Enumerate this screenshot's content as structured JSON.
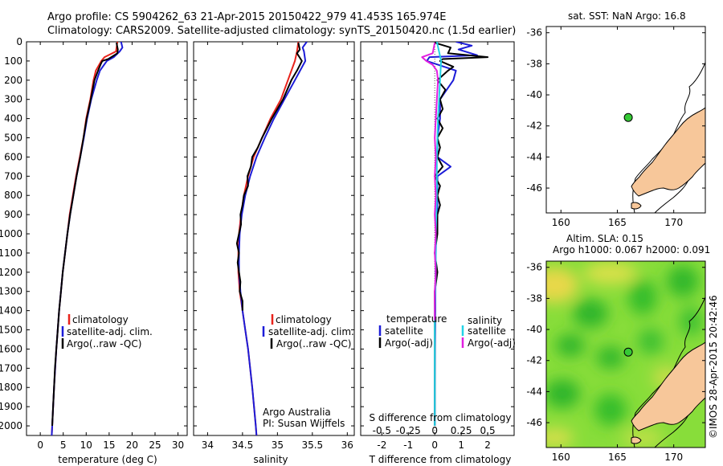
{
  "header": {
    "title_line1": "Argo profile: CS 5904262_63 21-Apr-2015 20150422_979 41.453S 165.974E",
    "title_line2": "Climatology: CARS2009. Satellite-adjusted climatology: synTS_20150420.nc (1.5d earlier)"
  },
  "colors": {
    "climatology": "#e8231b",
    "satellite": "#1c1cd8",
    "argo": "#000000",
    "sal_satellite": "#22d3e6",
    "sal_argo": "#e21fe0",
    "land": "#f7c79a",
    "marker": "#35c935"
  },
  "chart_data": [
    {
      "type": "line",
      "id": "temperature",
      "xlabel": "temperature (deg C)",
      "ylabel": "",
      "xlim": [
        -3,
        32
      ],
      "ylim": [
        2050,
        0
      ],
      "xticks": [
        0,
        5,
        10,
        15,
        20,
        25,
        30
      ],
      "yticks": [
        0,
        100,
        200,
        300,
        400,
        500,
        600,
        700,
        800,
        900,
        1000,
        1100,
        1200,
        1300,
        1400,
        1500,
        1600,
        1700,
        1800,
        1900,
        2000
      ],
      "legend": [
        "climatology",
        "satellite-adj. clim.",
        "Argo(..raw -QC)"
      ],
      "series": [
        {
          "name": "climatology",
          "depth": [
            0,
            50,
            80,
            100,
            150,
            200,
            300,
            400,
            500,
            600,
            700,
            800,
            900,
            1000,
            1200,
            1400,
            1600,
            1800,
            2000,
            2050
          ],
          "values": [
            16.8,
            16.5,
            14.0,
            13.3,
            12.1,
            11.6,
            10.9,
            10.0,
            9.4,
            8.6,
            7.8,
            7.1,
            6.4,
            5.9,
            4.9,
            4.1,
            3.5,
            3.0,
            2.6,
            2.5
          ]
        },
        {
          "name": "satellite-adj. clim.",
          "depth": [
            0,
            30,
            50,
            80,
            100,
            150,
            200,
            300,
            400,
            500,
            600,
            700,
            800,
            900,
            1000,
            1200,
            1400,
            1600,
            1800,
            2000,
            2050
          ],
          "values": [
            17.6,
            17.9,
            17.3,
            16.0,
            14.5,
            13.0,
            12.3,
            11.1,
            10.2,
            9.5,
            8.7,
            7.9,
            7.2,
            6.5,
            5.9,
            4.9,
            4.1,
            3.5,
            3.0,
            2.6,
            2.5
          ]
        },
        {
          "name": "Argo(..raw -QC)",
          "depth": [
            5,
            40,
            60,
            90,
            100,
            120,
            150,
            200,
            300,
            400,
            500,
            600,
            700,
            800,
            900,
            1000,
            1100,
            1200,
            1300,
            1400,
            1500,
            1600,
            1700,
            1800,
            1900,
            2000
          ],
          "values": [
            16.6,
            16.9,
            16.8,
            14.8,
            13.5,
            13.1,
            12.6,
            11.8,
            11.0,
            10.1,
            9.4,
            8.7,
            7.9,
            7.2,
            6.5,
            5.9,
            5.4,
            4.9,
            4.5,
            4.1,
            3.8,
            3.5,
            3.2,
            3.0,
            2.8,
            2.6
          ]
        }
      ]
    },
    {
      "type": "line",
      "id": "salinity",
      "xlabel": "salinity",
      "xlim": [
        33.8,
        36.1
      ],
      "ylim": [
        2050,
        0
      ],
      "xticks": [
        34,
        34.5,
        35,
        35.5,
        36
      ],
      "xticklabels": [
        "34",
        "34.5",
        "35",
        "35.5",
        "36"
      ],
      "legend": [
        "climatology",
        "satellite-adj. clim.",
        "Argo(..raw -QC)"
      ],
      "annotation_line1": "Argo Australia",
      "annotation_line2": "PI: Susan Wijffels",
      "series": [
        {
          "name": "climatology",
          "depth": [
            0,
            50,
            100,
            200,
            300,
            400,
            500,
            600,
            700,
            800,
            900,
            1000,
            1100,
            1200,
            1300,
            1400,
            1500,
            1600,
            1800,
            2000,
            2050
          ],
          "values": [
            35.3,
            35.28,
            35.25,
            35.15,
            35.05,
            34.9,
            34.78,
            34.66,
            34.58,
            34.52,
            34.48,
            34.45,
            34.44,
            34.44,
            34.46,
            34.5,
            34.54,
            34.58,
            34.64,
            34.69,
            34.7
          ]
        },
        {
          "name": "satellite-adj. clim.",
          "depth": [
            0,
            30,
            50,
            100,
            200,
            300,
            400,
            500,
            600,
            700,
            800,
            900,
            1000,
            1100,
            1200,
            1300,
            1400,
            1500,
            1600,
            1800,
            2000,
            2050
          ],
          "values": [
            35.42,
            35.36,
            35.38,
            35.4,
            35.25,
            35.1,
            34.95,
            34.82,
            34.7,
            34.61,
            34.54,
            34.49,
            34.46,
            34.45,
            34.45,
            34.47,
            34.5,
            34.54,
            34.58,
            34.64,
            34.69,
            34.7
          ]
        },
        {
          "name": "Argo(..raw -QC)",
          "depth": [
            5,
            40,
            60,
            100,
            150,
            200,
            300,
            400,
            500,
            550,
            600,
            650,
            700,
            750,
            800,
            850,
            900,
            950,
            1000,
            1050,
            1100,
            1150,
            1200,
            1250,
            1300,
            1350,
            1400
          ],
          "values": [
            35.3,
            35.32,
            35.28,
            35.35,
            35.28,
            35.2,
            35.08,
            34.92,
            34.78,
            34.72,
            34.64,
            34.62,
            34.57,
            34.58,
            34.52,
            34.5,
            34.47,
            34.48,
            34.45,
            34.42,
            34.45,
            34.43,
            34.45,
            34.47,
            34.46,
            34.5,
            34.5
          ]
        }
      ]
    },
    {
      "type": "line",
      "id": "difference",
      "xlabel": "T difference from climatology",
      "xlabel_top": "S difference from climatology",
      "xlim": [
        -2.8,
        3.0
      ],
      "ylim": [
        2050,
        0
      ],
      "xticks": [
        -2,
        -1,
        0,
        1,
        2
      ],
      "xticks_s": [
        -0.5,
        -0.25,
        0,
        0.25,
        0.5
      ],
      "xticklabels_s": [
        "-0.5",
        "-0.25",
        "0",
        "0.25",
        "0.5"
      ],
      "legend_temperature_title": "temperature",
      "legend_salinity_title": "salinity",
      "legend": [
        "satellite",
        "Argo(-adj)",
        "satellite",
        "Argo(-adj)"
      ],
      "series": [
        {
          "name": "T satellite",
          "depth": [
            0,
            20,
            40,
            70,
            80,
            100,
            150,
            200,
            300,
            400,
            500,
            600,
            650,
            700,
            800,
            900,
            1000,
            1200,
            1400,
            1600,
            1800,
            2000
          ],
          "values": [
            0.8,
            1.4,
            0.9,
            1.6,
            -0.2,
            -0.3,
            0.8,
            0.7,
            0.2,
            0.2,
            0.1,
            0.1,
            0.6,
            0.1,
            0.1,
            0.1,
            0.05,
            0.03,
            0.02,
            0.01,
            0.0,
            0.0
          ]
        },
        {
          "name": "T Argo(-adj)",
          "depth": [
            5,
            30,
            60,
            80,
            90,
            100,
            130,
            150,
            200,
            250,
            300,
            350,
            400,
            450,
            500,
            550,
            600,
            650,
            700,
            750,
            800,
            850,
            900,
            1000,
            1100,
            1200,
            1300,
            1400,
            1500,
            1600,
            1700,
            1800,
            1900,
            2000
          ],
          "values": [
            0.0,
            0.6,
            0.5,
            2.0,
            0.3,
            0.2,
            0.7,
            0.5,
            0.1,
            0.4,
            0.2,
            0.3,
            0.1,
            0.3,
            0.1,
            0.2,
            0.1,
            0.3,
            0.0,
            0.2,
            0.1,
            0.2,
            0.1,
            0.1,
            0.0,
            0.1,
            0.0,
            0.0,
            0.0,
            0.0,
            0.0,
            0.0,
            0.0,
            0.0
          ]
        },
        {
          "name": "S satellite",
          "depth": [
            0,
            50,
            100,
            200,
            400,
            600,
            800,
            1000,
            1200,
            1400,
            1600,
            1800,
            2000
          ],
          "values": [
            0.02,
            0.04,
            0.06,
            0.05,
            0.03,
            0.02,
            0.02,
            0.01,
            0.01,
            0.0,
            0.0,
            0.0,
            0.0
          ]
        },
        {
          "name": "S Argo(-adj)",
          "depth": [
            5,
            60,
            80,
            100,
            120,
            150,
            200,
            300,
            400,
            500,
            600,
            700,
            800,
            900,
            1000,
            1100,
            1200,
            1300,
            1400,
            1450
          ],
          "values": [
            0.0,
            -0.02,
            -0.12,
            -0.08,
            -0.02,
            0.02,
            0.03,
            0.02,
            0.01,
            0.0,
            0.01,
            0.0,
            0.01,
            0.0,
            0.01,
            0.0,
            0.01,
            0.0,
            0.0,
            0.0
          ]
        }
      ]
    },
    {
      "type": "scatter",
      "id": "map_sst",
      "title": "sat. SST: NaN Argo: 16.8",
      "xlim": [
        158.7,
        172.8
      ],
      "ylim": [
        -47.6,
        -35.6
      ],
      "xticks": [
        160,
        165,
        170
      ],
      "yticks": [
        -36,
        -38,
        -40,
        -42,
        -44,
        -46
      ],
      "points": [
        {
          "lon": 165.974,
          "lat": -41.453
        }
      ]
    },
    {
      "type": "heatmap",
      "id": "map_sla",
      "title_line1": "Altim. SLA: 0.15",
      "title_line2": "Argo h1000: 0.067 h2000: 0.091",
      "xlim": [
        158.7,
        172.8
      ],
      "ylim": [
        -47.6,
        -35.6
      ],
      "xticks": [
        160,
        165,
        170
      ],
      "yticks": [
        -36,
        -38,
        -40,
        -42,
        -44,
        -46
      ],
      "points": [
        {
          "lon": 165.974,
          "lat": -41.453
        }
      ]
    }
  ],
  "footer": {
    "credit": "©IMOS 28-Apr-2015 20:42:46"
  }
}
